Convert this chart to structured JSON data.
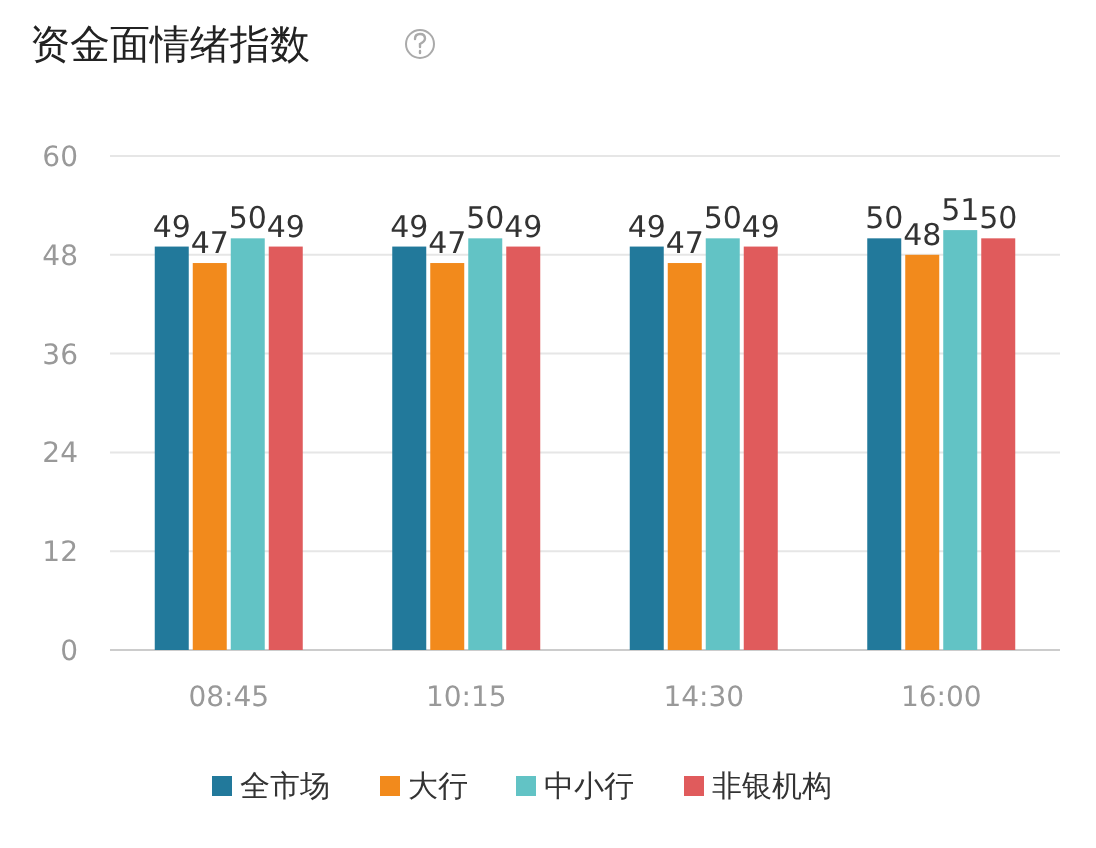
{
  "chart_data": {
    "type": "bar",
    "title": "资金面情绪指数",
    "categories": [
      "08:45",
      "10:15",
      "14:30",
      "16:00"
    ],
    "series": [
      {
        "name": "全市场",
        "color": "#22799b",
        "values": [
          49,
          49,
          49,
          50
        ]
      },
      {
        "name": "大行",
        "color": "#f28a1c",
        "values": [
          47,
          47,
          47,
          48
        ]
      },
      {
        "name": "中小行",
        "color": "#62c3c5",
        "values": [
          50,
          50,
          50,
          51
        ]
      },
      {
        "name": "非银机构",
        "color": "#e05b5c",
        "values": [
          49,
          49,
          49,
          50
        ]
      }
    ],
    "ylim": [
      0,
      60
    ],
    "yticks": [
      0,
      12,
      24,
      36,
      48,
      60
    ],
    "grid": "y",
    "legend": "bottom",
    "data_labels": true
  }
}
